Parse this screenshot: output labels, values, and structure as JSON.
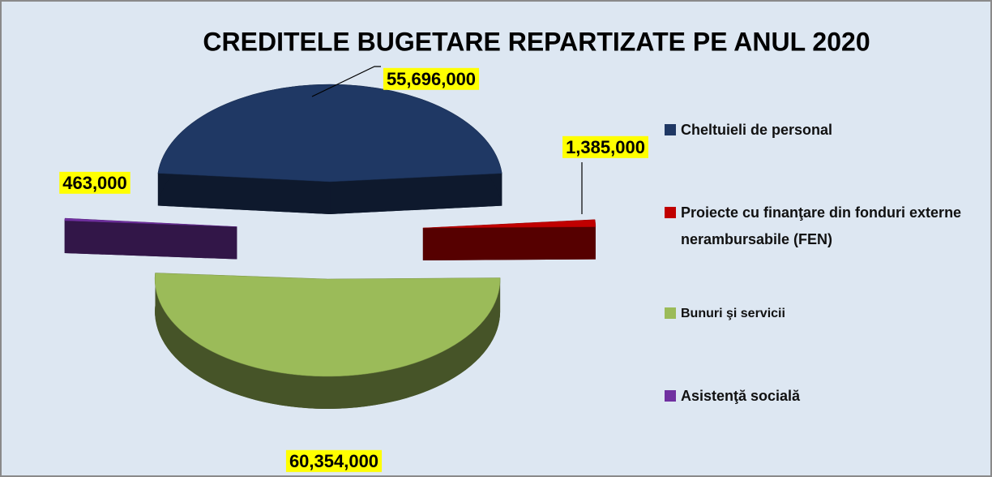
{
  "chart_data": {
    "type": "pie",
    "title": "CREDITELE BUGETARE REPARTIZATE PE ANUL 2020",
    "categories": [
      "Cheltuieli de personal",
      "Proiecte cu finanţare din fonduri externe nerambursabile (FEN)",
      "Bunuri şi servicii",
      "Asistenţă socială"
    ],
    "values": [
      55696000,
      1385000,
      60354000,
      463000
    ],
    "value_labels": [
      "55,696,000",
      "1,385,000",
      "60,354,000",
      "463,000"
    ],
    "colors": [
      "#1f3864",
      "#c00000",
      "#9bbb59",
      "#7030a0"
    ]
  }
}
